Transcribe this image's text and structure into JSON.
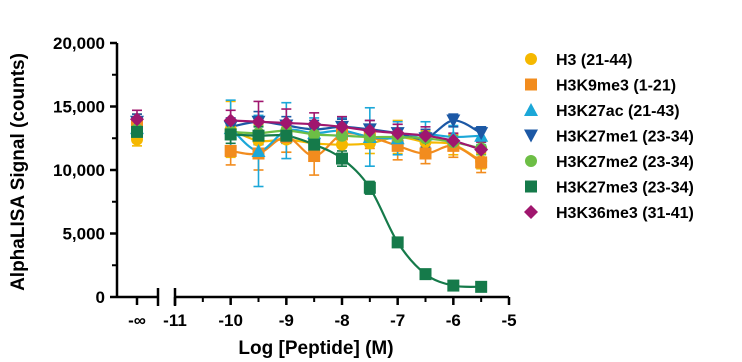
{
  "chart_data": {
    "type": "scatter",
    "title": "",
    "xlabel": "Log [Peptide] (M)",
    "ylabel": "AlphaLISA Signal (counts)",
    "ylim": [
      0,
      20000
    ],
    "xlim": [
      -11,
      -5
    ],
    "x_break_label": "-∞",
    "x_ticks": [
      "-11",
      "-10",
      "-9",
      "-8",
      "-7",
      "-6",
      "-5"
    ],
    "y_ticks": [
      "0",
      "5,000",
      "10,000",
      "15,000",
      "20,000"
    ],
    "legend_position": "right",
    "grid": false,
    "x": [
      "-inf",
      -10,
      -9.5,
      -9,
      -8.5,
      -8,
      -7.5,
      -7,
      -6.5,
      -6,
      -5.5
    ],
    "series": [
      {
        "name": "H3 (21-44)",
        "color": "#F5B800",
        "marker": "circle",
        "values": [
          12400,
          13200,
          12300,
          12400,
          12100,
          12000,
          12100,
          12600,
          12200,
          12000,
          10700
        ],
        "errors": [
          500,
          2200,
          1300,
          1000,
          900,
          800,
          800,
          1300,
          900,
          800,
          600
        ]
      },
      {
        "name": "H3K9me3 (1-21)",
        "color": "#F28C1E",
        "marker": "square",
        "values": [
          13600,
          11500,
          11300,
          12600,
          11100,
          12800,
          12600,
          11900,
          11300,
          11900,
          10600
        ],
        "errors": [
          800,
          1100,
          1300,
          1200,
          1500,
          1000,
          900,
          1100,
          800,
          900,
          800
        ]
      },
      {
        "name": "H3K27ac (21-43)",
        "color": "#1BA7D8",
        "marker": "triangle-up",
        "values": [
          13300,
          13300,
          11500,
          13100,
          12900,
          13100,
          12600,
          12500,
          12800,
          12600,
          12700
        ],
        "errors": [
          900,
          2200,
          2800,
          2200,
          1200,
          1000,
          2300,
          1300,
          1000,
          900,
          700
        ]
      },
      {
        "name": "H3K27me1 (23-34)",
        "color": "#1C58A5",
        "marker": "triangle-down",
        "values": [
          13800,
          13400,
          13800,
          13500,
          13200,
          13400,
          13200,
          12900,
          12500,
          13900,
          12900
        ],
        "errors": [
          600,
          700,
          800,
          700,
          700,
          600,
          700,
          700,
          700,
          500,
          500
        ]
      },
      {
        "name": "H3K27me2 (23-34)",
        "color": "#6DBE45",
        "marker": "circle",
        "values": [
          13200,
          13000,
          12900,
          13100,
          12800,
          12700,
          12600,
          12600,
          12500,
          12200,
          11700
        ],
        "errors": [
          500,
          600,
          600,
          600,
          500,
          500,
          600,
          600,
          500,
          500,
          500
        ]
      },
      {
        "name": "H3K27me3 (23-34)",
        "color": "#157A4A",
        "marker": "square",
        "values": [
          13000,
          12800,
          12700,
          12700,
          12000,
          10900,
          8600,
          4300,
          1800,
          900,
          800
        ],
        "errors": [
          600,
          700,
          700,
          600,
          600,
          600,
          500,
          300,
          200,
          100,
          100
        ]
      },
      {
        "name": "H3K36me3 (31-41)",
        "color": "#A0166E",
        "marker": "diamond",
        "values": [
          14000,
          13900,
          13800,
          13700,
          13600,
          13400,
          13100,
          12900,
          12700,
          12300,
          11600
        ],
        "errors": [
          700,
          800,
          1600,
          1100,
          900,
          800,
          800,
          700,
          700,
          600,
          600
        ]
      }
    ]
  }
}
